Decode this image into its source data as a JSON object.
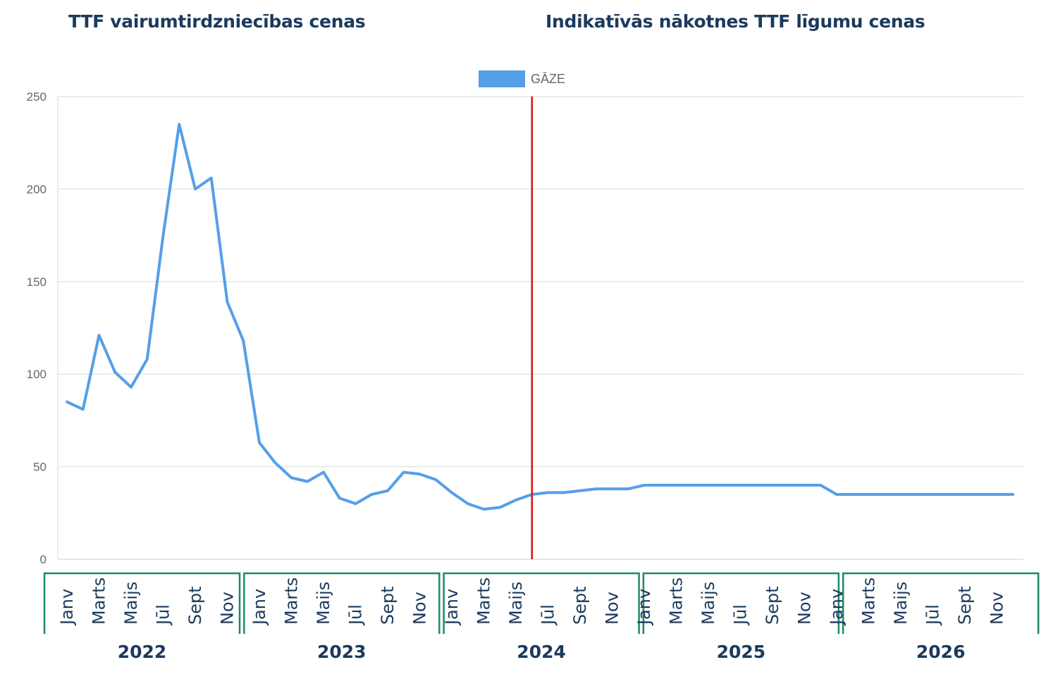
{
  "headers": {
    "left": "TTF vairumtirdzniecības cenas",
    "right": "Indikatīvās nākotnes TTF līgumu cenas"
  },
  "colors": {
    "series": "#559fe8",
    "divider": "#dd1111",
    "grid": "#e6e6e6",
    "year_box": "#1a8a6a",
    "text_dark": "#1b3a5c"
  },
  "chart_data": {
    "type": "line",
    "legend": {
      "position": "top-center"
    },
    "grid": true,
    "ylim": [
      0,
      250
    ],
    "yticks": [
      0,
      50,
      100,
      150,
      200,
      250
    ],
    "divider_after_index": 29,
    "years": [
      "2022",
      "2023",
      "2024",
      "2025",
      "2026"
    ],
    "month_ticks": [
      "Janv",
      "Marts",
      "Maijs",
      "Jūl",
      "Sept",
      "Nov"
    ],
    "series": [
      {
        "name": "GĀZE",
        "values": [
          85,
          81,
          121,
          101,
          93,
          108,
          175,
          235,
          200,
          206,
          139,
          118,
          63,
          52,
          44,
          42,
          47,
          33,
          30,
          35,
          37,
          47,
          46,
          43,
          36,
          30,
          27,
          28,
          32,
          35,
          36,
          36,
          37,
          38,
          38,
          38,
          40,
          40,
          40,
          40,
          40,
          40,
          40,
          40,
          40,
          40,
          40,
          40,
          35,
          35,
          35,
          35,
          35,
          35,
          35,
          35,
          35,
          35,
          35,
          35
        ]
      }
    ]
  }
}
